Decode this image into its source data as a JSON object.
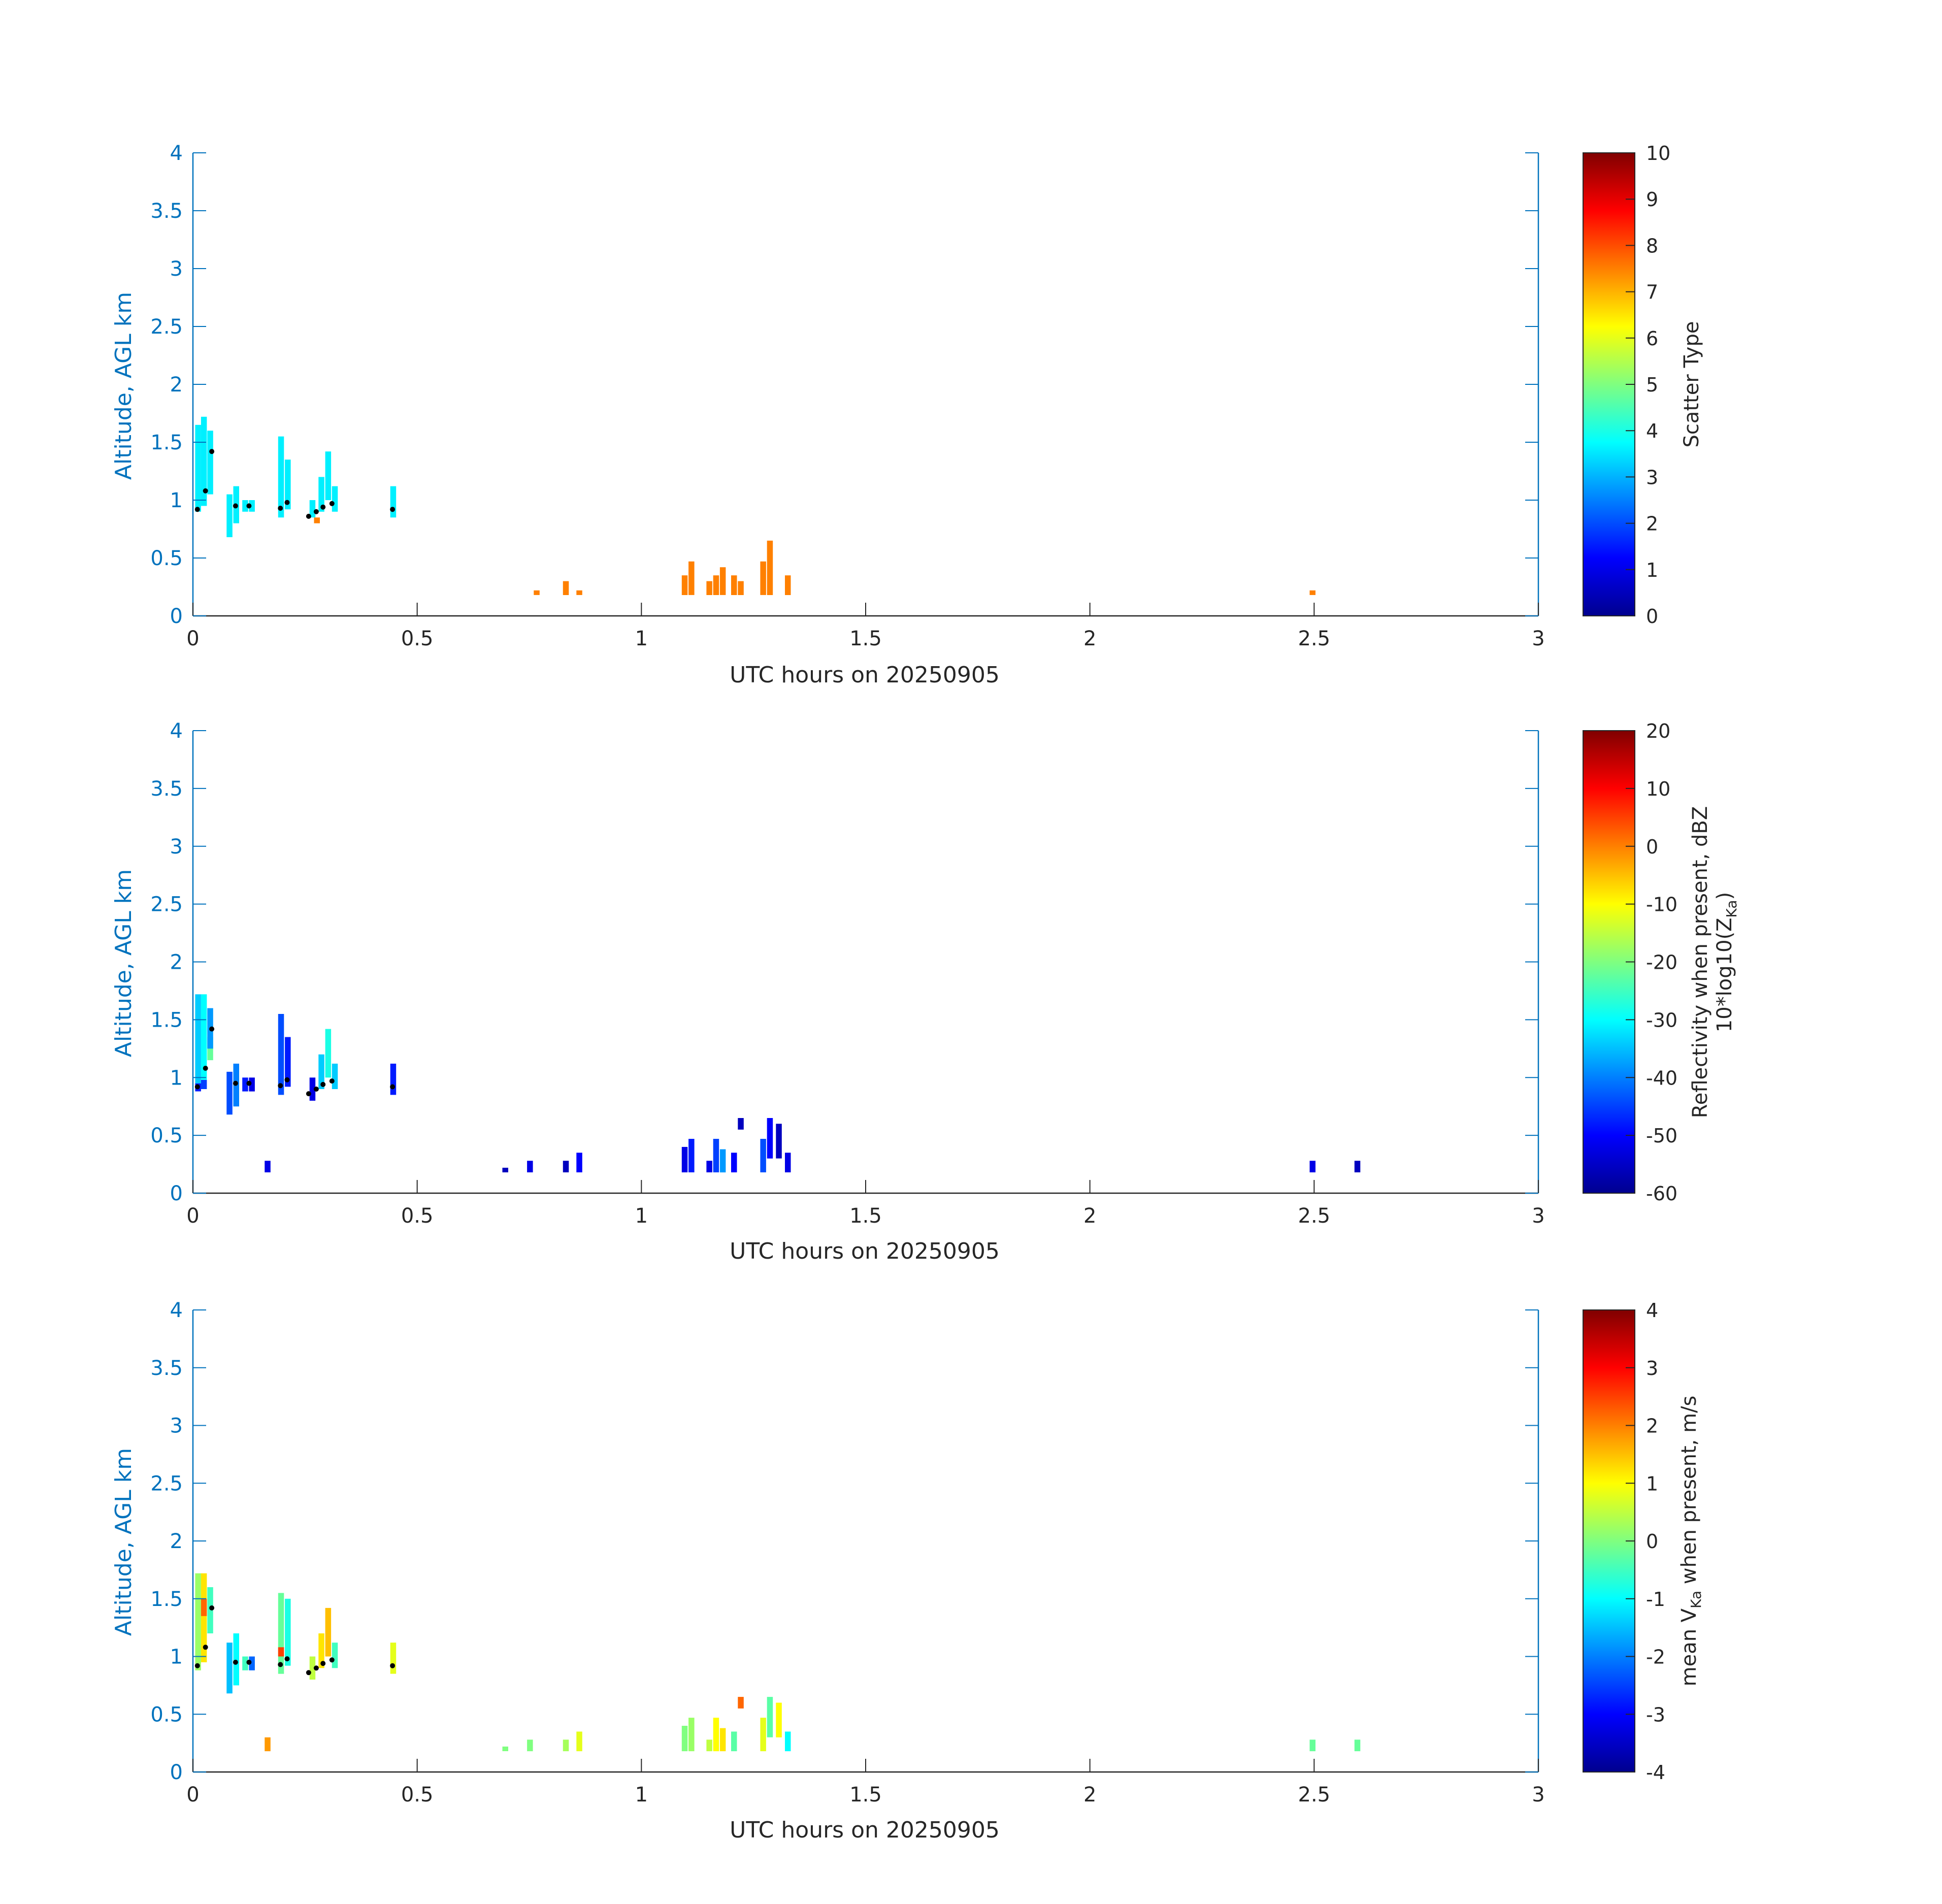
{
  "figure": {
    "colors": {
      "axis_left": "#0072bd",
      "axis_bottom": "#262626",
      "marker": "#000000"
    }
  },
  "chart_data": [
    {
      "type": "heatmap",
      "id": "scatter-type",
      "xlabel": "UTC hours on 20250905",
      "ylabel": "Altitude, AGL km",
      "xlim": [
        0,
        3
      ],
      "ylim": [
        0,
        4
      ],
      "xticks": [
        "0",
        "0.5",
        "1",
        "1.5",
        "2",
        "2.5",
        "3"
      ],
      "yticks": [
        "0",
        "0.5",
        "1",
        "1.5",
        "2",
        "2.5",
        "3",
        "3.5",
        "4"
      ],
      "colorbar": {
        "label": "Scatter Type",
        "clim": [
          0,
          10
        ],
        "ticks": [
          "0",
          "1",
          "2",
          "3",
          "4",
          "5",
          "6",
          "7",
          "8",
          "9",
          "10"
        ]
      },
      "cells": [
        [
          0.005,
          0.9,
          1.65,
          3.6
        ],
        [
          0.018,
          0.95,
          1.72,
          3.6
        ],
        [
          0.032,
          1.05,
          1.6,
          3.6
        ],
        [
          0.075,
          0.68,
          1.05,
          3.6
        ],
        [
          0.09,
          0.8,
          1.12,
          3.6
        ],
        [
          0.11,
          0.9,
          1.0,
          3.6
        ],
        [
          0.125,
          0.9,
          1.0,
          3.6
        ],
        [
          0.19,
          0.85,
          1.55,
          3.6
        ],
        [
          0.205,
          0.92,
          1.35,
          3.6
        ],
        [
          0.26,
          0.85,
          1.0,
          3.6
        ],
        [
          0.27,
          0.8,
          0.85,
          7.5
        ],
        [
          0.28,
          0.9,
          1.2,
          3.6
        ],
        [
          0.295,
          1.0,
          1.42,
          3.6
        ],
        [
          0.31,
          0.9,
          1.12,
          3.6
        ],
        [
          0.44,
          0.85,
          1.12,
          3.6
        ],
        [
          0.76,
          0.18,
          0.22,
          7.5
        ],
        [
          0.825,
          0.18,
          0.3,
          7.5
        ],
        [
          0.855,
          0.18,
          0.22,
          7.5
        ],
        [
          1.09,
          0.18,
          0.35,
          7.5
        ],
        [
          1.105,
          0.18,
          0.47,
          7.5
        ],
        [
          1.145,
          0.18,
          0.3,
          7.5
        ],
        [
          1.16,
          0.18,
          0.35,
          7.5
        ],
        [
          1.175,
          0.18,
          0.42,
          7.5
        ],
        [
          1.2,
          0.18,
          0.35,
          7.5
        ],
        [
          1.215,
          0.18,
          0.3,
          7.5
        ],
        [
          1.265,
          0.18,
          0.47,
          7.5
        ],
        [
          1.28,
          0.18,
          0.65,
          7.5
        ],
        [
          1.32,
          0.18,
          0.35,
          7.5
        ],
        [
          2.49,
          0.18,
          0.22,
          7.5
        ]
      ],
      "points": [
        [
          0.01,
          0.92
        ],
        [
          0.028,
          1.08
        ],
        [
          0.042,
          1.42
        ],
        [
          0.095,
          0.95
        ],
        [
          0.125,
          0.95
        ],
        [
          0.195,
          0.93
        ],
        [
          0.21,
          0.98
        ],
        [
          0.258,
          0.86
        ],
        [
          0.275,
          0.9
        ],
        [
          0.29,
          0.94
        ],
        [
          0.31,
          0.97
        ],
        [
          0.445,
          0.92
        ]
      ]
    },
    {
      "type": "heatmap",
      "id": "reflectivity",
      "xlabel": "UTC hours on 20250905",
      "ylabel": "Altitude, AGL km",
      "xlim": [
        0,
        3
      ],
      "ylim": [
        0,
        4
      ],
      "xticks": [
        "0",
        "0.5",
        "1",
        "1.5",
        "2",
        "2.5",
        "3"
      ],
      "yticks": [
        "0",
        "0.5",
        "1",
        "1.5",
        "2",
        "2.5",
        "3",
        "3.5",
        "4"
      ],
      "colorbar": {
        "label_line1": "Reflectivity when present, dBZ",
        "label_line2_prefix": "10*log10(Z",
        "label_line2_sub": "Ka",
        "label_line2_suffix": ")",
        "clim": [
          -60,
          20
        ],
        "ticks": [
          "-60",
          "-50",
          "-40",
          "-30",
          "-20",
          "-10",
          "0",
          "10",
          "20"
        ]
      },
      "cells": [
        [
          0.005,
          0.88,
          0.95,
          -48
        ],
        [
          0.005,
          0.95,
          1.72,
          -34
        ],
        [
          0.018,
          0.9,
          0.98,
          -45
        ],
        [
          0.018,
          0.98,
          1.72,
          -30
        ],
        [
          0.032,
          1.15,
          1.35,
          -22
        ],
        [
          0.032,
          1.25,
          1.6,
          -38
        ],
        [
          0.075,
          0.68,
          1.05,
          -44
        ],
        [
          0.09,
          0.75,
          1.12,
          -40
        ],
        [
          0.11,
          0.88,
          1.0,
          -48
        ],
        [
          0.125,
          0.88,
          1.0,
          -52
        ],
        [
          0.16,
          0.18,
          0.28,
          -52
        ],
        [
          0.19,
          0.85,
          1.55,
          -44
        ],
        [
          0.205,
          0.92,
          1.35,
          -48
        ],
        [
          0.26,
          0.8,
          1.0,
          -52
        ],
        [
          0.28,
          0.9,
          1.2,
          -34
        ],
        [
          0.295,
          1.0,
          1.42,
          -28
        ],
        [
          0.31,
          0.9,
          1.12,
          -34
        ],
        [
          0.44,
          0.85,
          1.12,
          -48
        ],
        [
          0.69,
          0.18,
          0.22,
          -55
        ],
        [
          0.745,
          0.18,
          0.28,
          -52
        ],
        [
          0.825,
          0.18,
          0.28,
          -55
        ],
        [
          0.855,
          0.18,
          0.35,
          -50
        ],
        [
          1.09,
          0.18,
          0.4,
          -52
        ],
        [
          1.105,
          0.18,
          0.47,
          -48
        ],
        [
          1.145,
          0.18,
          0.28,
          -52
        ],
        [
          1.16,
          0.18,
          0.47,
          -45
        ],
        [
          1.175,
          0.18,
          0.38,
          -38
        ],
        [
          1.2,
          0.18,
          0.35,
          -50
        ],
        [
          1.215,
          0.55,
          0.65,
          -55
        ],
        [
          1.265,
          0.18,
          0.47,
          -44
        ],
        [
          1.28,
          0.3,
          0.65,
          -50
        ],
        [
          1.3,
          0.3,
          0.6,
          -55
        ],
        [
          1.32,
          0.18,
          0.35,
          -52
        ],
        [
          2.49,
          0.18,
          0.28,
          -52
        ],
        [
          2.59,
          0.18,
          0.28,
          -55
        ]
      ],
      "points": [
        [
          0.01,
          0.92
        ],
        [
          0.028,
          1.08
        ],
        [
          0.042,
          1.42
        ],
        [
          0.095,
          0.95
        ],
        [
          0.125,
          0.95
        ],
        [
          0.195,
          0.93
        ],
        [
          0.21,
          0.98
        ],
        [
          0.258,
          0.86
        ],
        [
          0.275,
          0.9
        ],
        [
          0.29,
          0.94
        ],
        [
          0.31,
          0.97
        ],
        [
          0.445,
          0.92
        ]
      ]
    },
    {
      "type": "heatmap",
      "id": "velocity",
      "xlabel": "UTC hours on 20250905",
      "ylabel": "Altitude, AGL km",
      "xlim": [
        0,
        3
      ],
      "ylim": [
        0,
        4
      ],
      "xticks": [
        "0",
        "0.5",
        "1",
        "1.5",
        "2",
        "2.5",
        "3"
      ],
      "yticks": [
        "0",
        "0.5",
        "1",
        "1.5",
        "2",
        "2.5",
        "3",
        "3.5",
        "4"
      ],
      "colorbar": {
        "label_prefix": "mean V",
        "label_sub": "Ka",
        "label_suffix": " when present, m/s",
        "clim": [
          -4,
          4
        ],
        "ticks": [
          "-4",
          "-3",
          "-2",
          "-1",
          "0",
          "1",
          "2",
          "3",
          "4"
        ]
      },
      "cells": [
        [
          0.005,
          0.88,
          1.72,
          0.2
        ],
        [
          0.018,
          0.95,
          1.72,
          1.2
        ],
        [
          0.018,
          1.35,
          1.5,
          2.2
        ],
        [
          0.032,
          1.2,
          1.6,
          -0.5
        ],
        [
          0.075,
          0.68,
          1.12,
          -1.5
        ],
        [
          0.09,
          0.75,
          1.2,
          -1.0
        ],
        [
          0.11,
          0.88,
          1.0,
          -0.5
        ],
        [
          0.125,
          0.88,
          1.0,
          -2.2
        ],
        [
          0.16,
          0.18,
          0.3,
          1.8
        ],
        [
          0.19,
          0.85,
          1.55,
          -0.2
        ],
        [
          0.19,
          1.0,
          1.08,
          2.5
        ],
        [
          0.205,
          0.92,
          1.5,
          -0.8
        ],
        [
          0.26,
          0.8,
          1.0,
          0.5
        ],
        [
          0.28,
          0.9,
          1.2,
          1.2
        ],
        [
          0.295,
          1.0,
          1.42,
          1.5
        ],
        [
          0.31,
          0.9,
          1.12,
          -0.5
        ],
        [
          0.44,
          0.85,
          1.12,
          0.8
        ],
        [
          0.69,
          0.18,
          0.22,
          0
        ],
        [
          0.745,
          0.18,
          0.28,
          0
        ],
        [
          0.825,
          0.18,
          0.28,
          0.3
        ],
        [
          0.855,
          0.18,
          0.35,
          0.8
        ],
        [
          1.09,
          0.18,
          0.4,
          0
        ],
        [
          1.105,
          0.18,
          0.47,
          0.2
        ],
        [
          1.145,
          0.18,
          0.28,
          0.5
        ],
        [
          1.16,
          0.18,
          0.47,
          1.0
        ],
        [
          1.175,
          0.18,
          0.38,
          1.2
        ],
        [
          1.2,
          0.18,
          0.35,
          -0.3
        ],
        [
          1.215,
          0.55,
          0.65,
          2.2
        ],
        [
          1.265,
          0.18,
          0.47,
          0.8
        ],
        [
          1.28,
          0.3,
          0.65,
          -0.3
        ],
        [
          1.3,
          0.3,
          0.6,
          1.0
        ],
        [
          1.32,
          0.18,
          0.35,
          -1.0
        ],
        [
          2.49,
          0.18,
          0.28,
          -0.2
        ],
        [
          2.59,
          0.18,
          0.28,
          -0.2
        ]
      ],
      "points": [
        [
          0.01,
          0.92
        ],
        [
          0.028,
          1.08
        ],
        [
          0.042,
          1.42
        ],
        [
          0.095,
          0.95
        ],
        [
          0.125,
          0.95
        ],
        [
          0.195,
          0.93
        ],
        [
          0.21,
          0.98
        ],
        [
          0.258,
          0.86
        ],
        [
          0.275,
          0.9
        ],
        [
          0.29,
          0.94
        ],
        [
          0.31,
          0.97
        ],
        [
          0.445,
          0.92
        ]
      ]
    }
  ]
}
